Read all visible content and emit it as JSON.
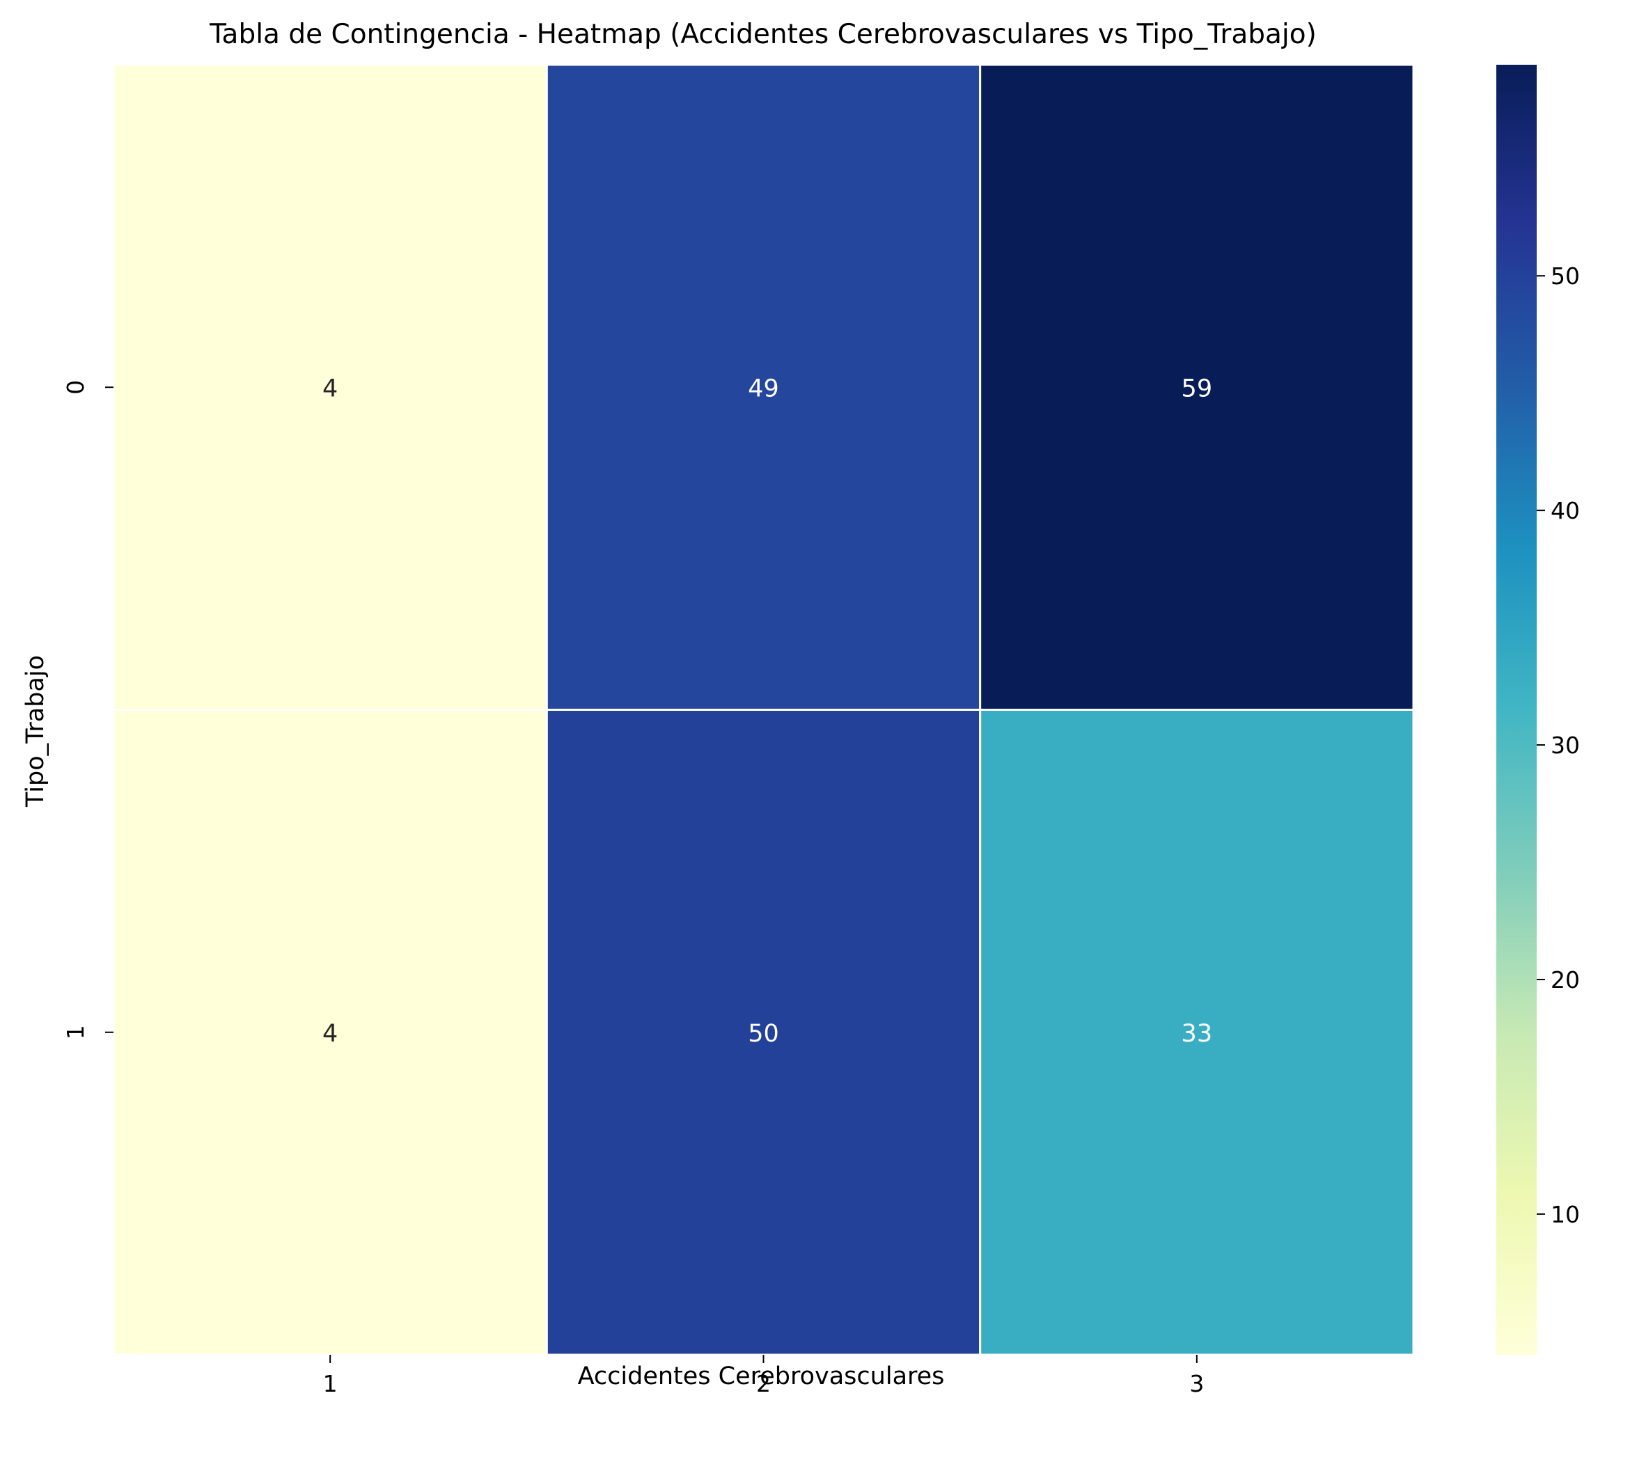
{
  "chart_data": {
    "type": "heatmap",
    "title": "Tabla de Contingencia - Heatmap (Accidentes Cerebrovasculares vs Tipo_Trabajo)",
    "xlabel": "Accidentes Cerebrovasculares",
    "ylabel": "Tipo_Trabajo",
    "x_categories": [
      "1",
      "2",
      "3"
    ],
    "y_categories": [
      "0",
      "1"
    ],
    "values": [
      [
        4,
        49,
        59
      ],
      [
        4,
        50,
        33
      ]
    ],
    "colorbar": {
      "colormap": "YlGnBu",
      "range": [
        4,
        59
      ],
      "ticks": [
        10,
        20,
        30,
        40,
        50
      ]
    },
    "annotation_colors": {
      "light_cell": "#262626",
      "dark_cell": "#ffffff"
    },
    "cell_line_color": "#ffffff"
  }
}
